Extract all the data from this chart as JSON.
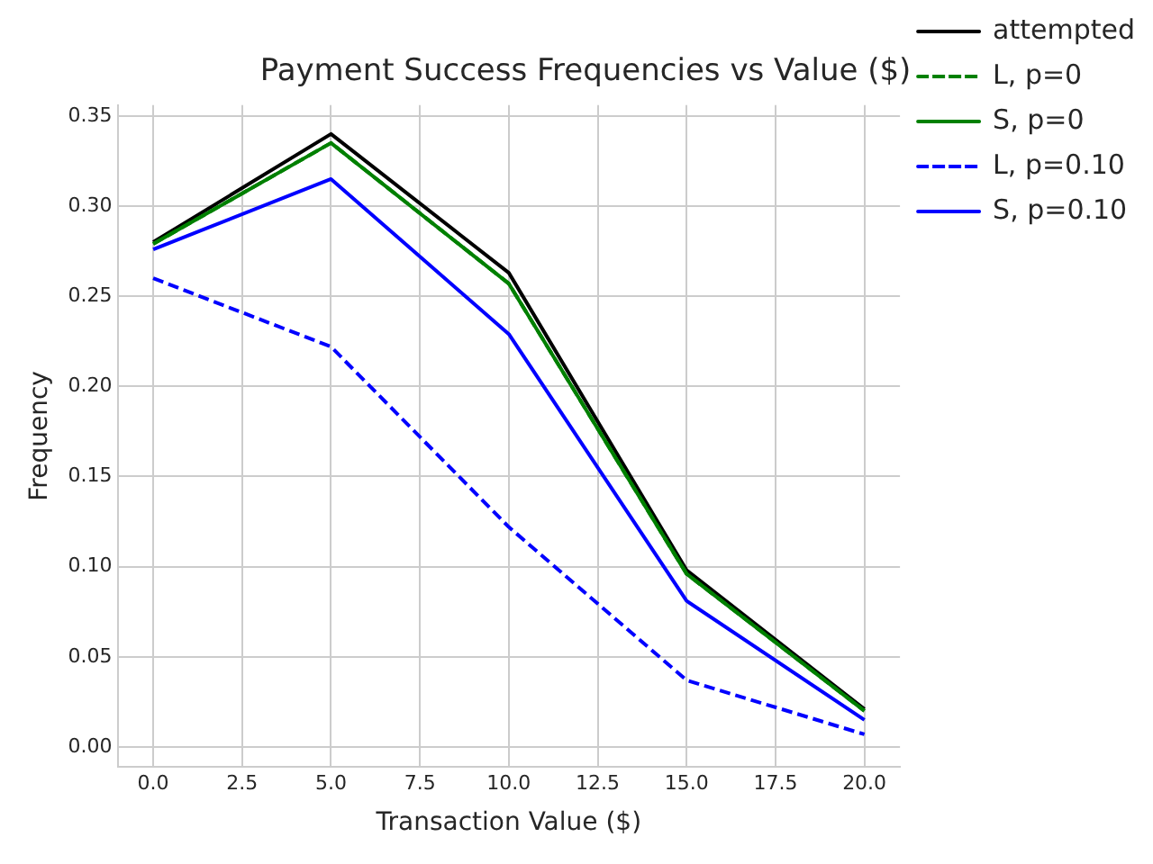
{
  "chart_data": {
    "type": "line",
    "title": "Payment Success Frequencies vs Value ($)",
    "xlabel": "Transaction Value ($)",
    "ylabel": "Frequency",
    "x": [
      0,
      5,
      10,
      15,
      20
    ],
    "series": [
      {
        "name": "attempted",
        "color": "#000000",
        "line_style": "solid",
        "values": [
          0.28,
          0.34,
          0.263,
          0.098,
          0.021
        ]
      },
      {
        "name": "L, p=0",
        "color": "#008000",
        "line_style": "dashed",
        "values": [
          0.279,
          0.335,
          0.257,
          0.096,
          0.02
        ]
      },
      {
        "name": "S, p=0",
        "color": "#008000",
        "line_style": "solid",
        "values": [
          0.279,
          0.335,
          0.257,
          0.096,
          0.02
        ]
      },
      {
        "name": "L, p=0.10",
        "color": "#0000ff",
        "line_style": "dashed",
        "values": [
          0.26,
          0.222,
          0.122,
          0.037,
          0.007
        ]
      },
      {
        "name": "S, p=0.10",
        "color": "#0000ff",
        "line_style": "solid",
        "values": [
          0.276,
          0.315,
          0.229,
          0.081,
          0.015
        ]
      }
    ],
    "xlim": [
      -1,
      21
    ],
    "xticks": [
      {
        "value": 0,
        "label": "0.0"
      },
      {
        "value": 2.5,
        "label": "2.5"
      },
      {
        "value": 5,
        "label": "5.0"
      },
      {
        "value": 7.5,
        "label": "7.5"
      },
      {
        "value": 10,
        "label": "10.0"
      },
      {
        "value": 12.5,
        "label": "12.5"
      },
      {
        "value": 15,
        "label": "15.0"
      },
      {
        "value": 17.5,
        "label": "17.5"
      },
      {
        "value": 20,
        "label": "20.0"
      }
    ],
    "ylim": [
      -0.011,
      0.356
    ],
    "yticks": [
      {
        "value": 0,
        "label": "0.00"
      },
      {
        "value": 0.05,
        "label": "0.05"
      },
      {
        "value": 0.1,
        "label": "0.10"
      },
      {
        "value": 0.15,
        "label": "0.15"
      },
      {
        "value": 0.2,
        "label": "0.20"
      },
      {
        "value": 0.25,
        "label": "0.25"
      },
      {
        "value": 0.3,
        "label": "0.30"
      },
      {
        "value": 0.35,
        "label": "0.35"
      }
    ],
    "grid": true,
    "legend": "top right",
    "marker": "none"
  }
}
